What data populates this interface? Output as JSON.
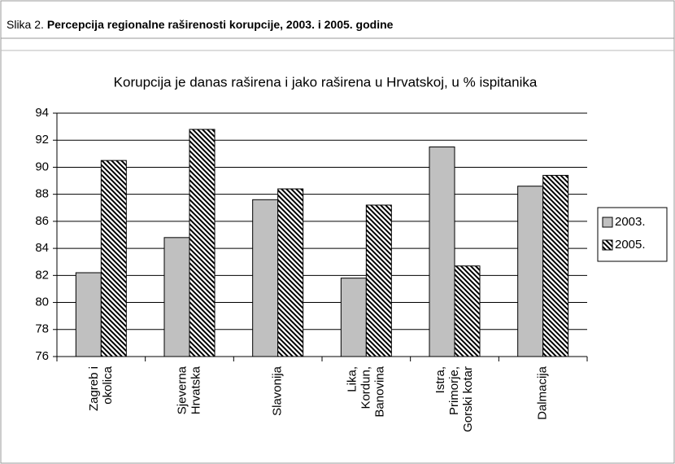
{
  "header": {
    "label": "Slika 2.",
    "title": "Percepcija regionalne raširenosti korupcije, 2003. i 2005. godine"
  },
  "chart_data": {
    "type": "bar",
    "title": "Korupcija je danas raširena i jako raširena u Hrvatskoj, u % ispitanika",
    "categories": [
      [
        "Zagreb i",
        "okolica"
      ],
      [
        "Sjeverna",
        "Hrvatska"
      ],
      [
        "Slavonija"
      ],
      [
        "Lika,",
        "Kordun,",
        "Banovina"
      ],
      [
        "Istra,",
        "Primorje,",
        "Gorski kotar"
      ],
      [
        "Dalmacija"
      ]
    ],
    "series": [
      {
        "name": "2003.",
        "color": "#c0c0c0",
        "values": [
          82.2,
          84.8,
          87.6,
          81.8,
          91.5,
          88.6
        ]
      },
      {
        "name": "2005.",
        "color": "hatch",
        "values": [
          90.5,
          92.8,
          88.4,
          87.2,
          82.7,
          89.4
        ]
      }
    ],
    "ylim": [
      76,
      94
    ],
    "yticks": [
      76,
      78,
      80,
      82,
      84,
      86,
      88,
      90,
      92,
      94
    ],
    "grid": true,
    "legend": "right"
  }
}
